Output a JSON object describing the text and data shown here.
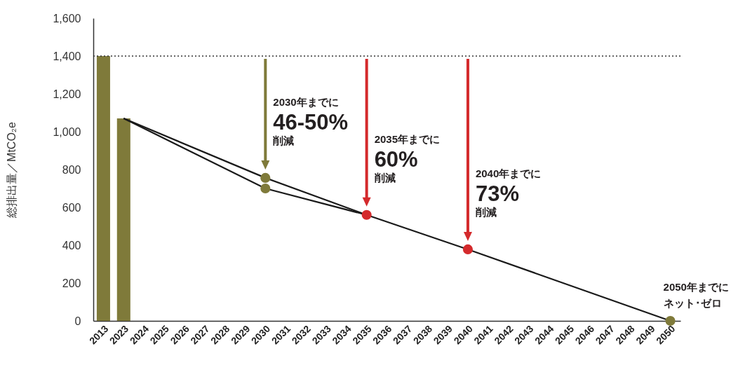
{
  "chart_data": {
    "type": "bar",
    "categories": [
      "2013",
      "2023",
      "2024",
      "2025",
      "2026",
      "2027",
      "2028",
      "2029",
      "2030",
      "2031",
      "2032",
      "2033",
      "2034",
      "2035",
      "2036",
      "2037",
      "2038",
      "2039",
      "2040",
      "2041",
      "2042",
      "2043",
      "2044",
      "2045",
      "2046",
      "2047",
      "2048",
      "2049",
      "2050"
    ],
    "ylabel": "総排出量／MtCO₂e",
    "ylim": [
      0,
      1600
    ],
    "yticks": [
      0,
      200,
      400,
      600,
      800,
      {
        "value": 1000,
        "label": "1,000"
      },
      {
        "value": 1200,
        "label": "1,200"
      },
      {
        "value": 1400,
        "label": "1,400"
      },
      {
        "value": 1600,
        "label": "1,600"
      }
    ],
    "series": [
      {
        "color": "#7f7a3a",
        "values": [
          1400,
          1070,
          null,
          null,
          null,
          null,
          null,
          null,
          null,
          null,
          null,
          null,
          null,
          null,
          null,
          null,
          null,
          null,
          null,
          null,
          null,
          null,
          null,
          null,
          null,
          null,
          null,
          null,
          null
        ]
      },
      {
        "type": "line",
        "color": "#1a1a1a",
        "values": [
          null,
          1070,
          null,
          null,
          null,
          null,
          null,
          null,
          756,
          null,
          null,
          null,
          null,
          560,
          null,
          null,
          null,
          null,
          378,
          null,
          null,
          null,
          null,
          null,
          null,
          null,
          null,
          null,
          0
        ]
      },
      {
        "type": "line",
        "color": "#1a1a1a",
        "values": [
          null,
          1070,
          null,
          null,
          null,
          null,
          null,
          null,
          700,
          null,
          null,
          null,
          null,
          560,
          null,
          null,
          null,
          null,
          null,
          null,
          null,
          null,
          null,
          null,
          null,
          null,
          null,
          null,
          null
        ]
      },
      {
        "type": "scatter",
        "marker": "circle",
        "values": [
          null,
          null,
          null,
          null,
          null,
          null,
          null,
          null,
          756,
          null,
          null,
          null,
          null,
          560,
          null,
          null,
          null,
          null,
          378,
          null,
          null,
          null,
          null,
          null,
          null,
          null,
          null,
          null,
          0
        ],
        "colors": [
          null,
          null,
          null,
          null,
          null,
          null,
          null,
          null,
          "#7f7a3a",
          null,
          null,
          null,
          null,
          "#d42a2c",
          null,
          null,
          null,
          null,
          "#d42a2c",
          null,
          null,
          null,
          null,
          null,
          null,
          null,
          null,
          null,
          "#7f7a3a"
        ]
      },
      {
        "type": "scatter",
        "marker": "circle",
        "values": [
          null,
          null,
          null,
          null,
          null,
          null,
          null,
          null,
          700,
          null,
          null,
          null,
          null,
          null,
          null,
          null,
          null,
          null,
          null,
          null,
          null,
          null,
          null,
          null,
          null,
          null,
          null,
          null,
          null
        ],
        "colors": [
          null,
          null,
          null,
          null,
          null,
          null,
          null,
          null,
          "#7f7a3a",
          null,
          null,
          null,
          null,
          null,
          null,
          null,
          null,
          null,
          null,
          null,
          null,
          null,
          null,
          null,
          null,
          null,
          null,
          null,
          null
        ]
      }
    ],
    "ref_lines": [
      {
        "axis": "y",
        "value": 1400,
        "line_style": "dotted",
        "color": "#333333"
      }
    ],
    "annotations": [
      {
        "text": "2030年までに\n46-50%\n削減",
        "x": "2030",
        "y": 756
      },
      {
        "text": "2035年までに\n60%\n削減",
        "x": "2035",
        "y": 560
      },
      {
        "text": "2040年までに\n73%\n削減",
        "x": "2040",
        "y": 378
      },
      {
        "text": "2050年までに",
        "x": "2050",
        "y": 0
      },
      {
        "text": "ネット･ゼロ",
        "x": "2050",
        "y": 0
      }
    ]
  }
}
